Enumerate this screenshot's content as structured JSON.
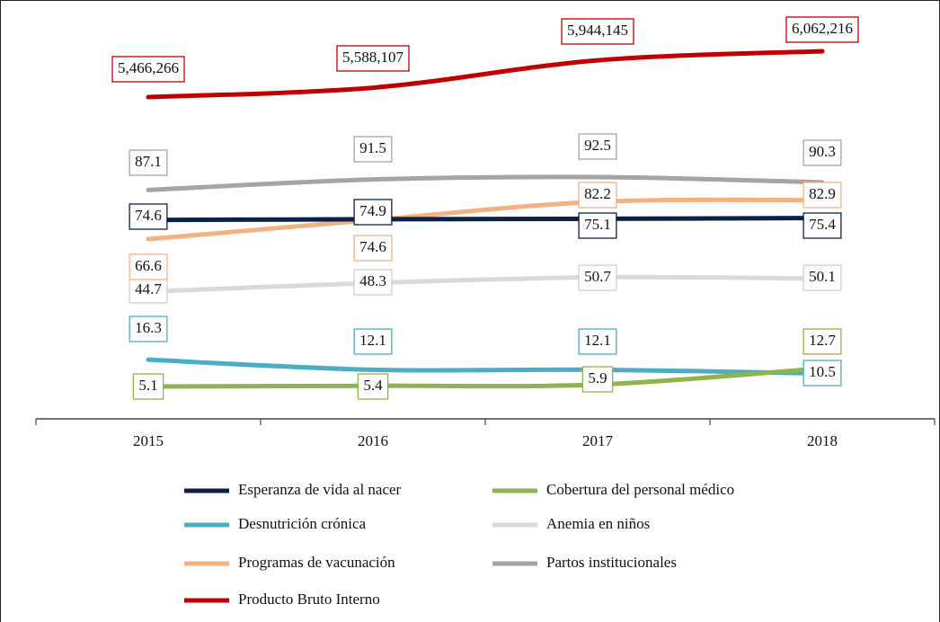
{
  "chart_data": {
    "type": "line",
    "categories": [
      "2015",
      "2016",
      "2017",
      "2018"
    ],
    "series": [
      {
        "name": "Esperanza de vida al nacer",
        "color": "#0b2047",
        "values": [
          74.6,
          74.9,
          75.1,
          75.4
        ]
      },
      {
        "name": "Cobertura del personal médico",
        "color": "#8fb34d",
        "values": [
          5.1,
          5.4,
          5.9,
          12.7
        ]
      },
      {
        "name": "Desnutrición crónica",
        "color": "#4bacc6",
        "values": [
          16.3,
          12.1,
          12.1,
          10.5
        ]
      },
      {
        "name": "Anemia en niños",
        "color": "#d9d9d9",
        "values": [
          44.7,
          48.3,
          50.7,
          50.1
        ]
      },
      {
        "name": "Programas de vacunación",
        "color": "#f4b183",
        "values": [
          66.6,
          74.6,
          82.2,
          82.9
        ]
      },
      {
        "name": "Partos institucionales",
        "color": "#a5a5a5",
        "values": [
          87.1,
          91.5,
          92.5,
          90.3
        ]
      },
      {
        "name": "Producto Bruto Interno",
        "color": "#c00000",
        "axis": "y2",
        "values": [
          5466266,
          5588107,
          5944145,
          6062216
        ],
        "value_labels": [
          "5,466,266",
          "5,588,107",
          "5,944,145",
          "6,062,216"
        ]
      }
    ]
  }
}
